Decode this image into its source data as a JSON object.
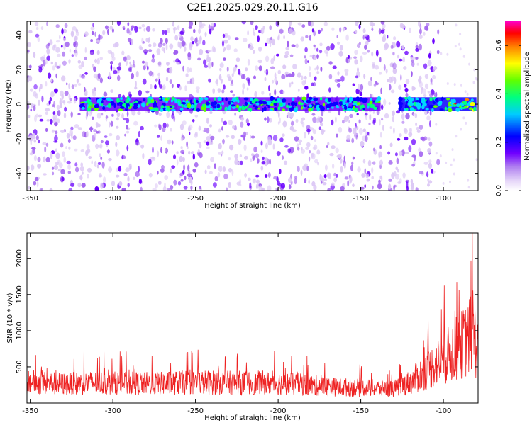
{
  "figure_title": "C2E1.2025.029.20.11.G16",
  "colors": {
    "snr_line": "#ee2222",
    "axes": "#000000",
    "spectrogram_scale": [
      "#ffffff",
      "#dcc8f5",
      "#a060f0",
      "#6a00ff",
      "#0a00ff",
      "#00d8ff",
      "#00ff80",
      "#60ff00",
      "#ffff00",
      "#ff8000",
      "#ff0000",
      "#ff00c8"
    ]
  },
  "chart_data": [
    {
      "type": "heatmap",
      "xlabel": "Height of straight line (km)",
      "ylabel": "Frequency (Hz)",
      "colorbar_label": "Normalized spectral amplitude",
      "xlim": [
        -352,
        -79
      ],
      "ylim": [
        -50,
        48
      ],
      "xticks": [
        -350,
        -300,
        -250,
        -200,
        -150,
        -100
      ],
      "yticks": [
        -40,
        -20,
        0,
        20,
        40
      ],
      "colorbar_range": [
        0.0,
        0.7
      ],
      "colorbar_ticks": [
        "0.0",
        "0.2",
        "0.4",
        "0.6"
      ],
      "features": {
        "main_band_frequency_hz": 0,
        "main_band_extent_km": [
          -320,
          -80
        ],
        "main_band_gap_km": [
          -138,
          -127
        ],
        "peak_amplitude_region_km": [
          -100,
          -80
        ],
        "noise_cutoff_km": -105
      }
    },
    {
      "type": "line",
      "xlabel": "Height of straight line (km)",
      "ylabel": "SNR (10 * v/v)",
      "xlim": [
        -352,
        -79
      ],
      "ylim": [
        0,
        2350
      ],
      "xticks": [
        -350,
        -300,
        -250,
        -200,
        -150,
        -100
      ],
      "yticks": [
        500,
        1000,
        1500,
        2000
      ],
      "series": [
        {
          "x": [
            -350,
            -330,
            -310,
            -290,
            -270,
            -250,
            -230,
            -210,
            -190,
            -170,
            -150,
            -130,
            -120,
            -110,
            -100,
            -95,
            -90,
            -85,
            -82,
            -80
          ],
          "y": [
            330,
            300,
            320,
            310,
            310,
            330,
            320,
            320,
            300,
            260,
            240,
            230,
            330,
            520,
            700,
            800,
            900,
            1000,
            1200,
            900
          ]
        }
      ]
    }
  ]
}
